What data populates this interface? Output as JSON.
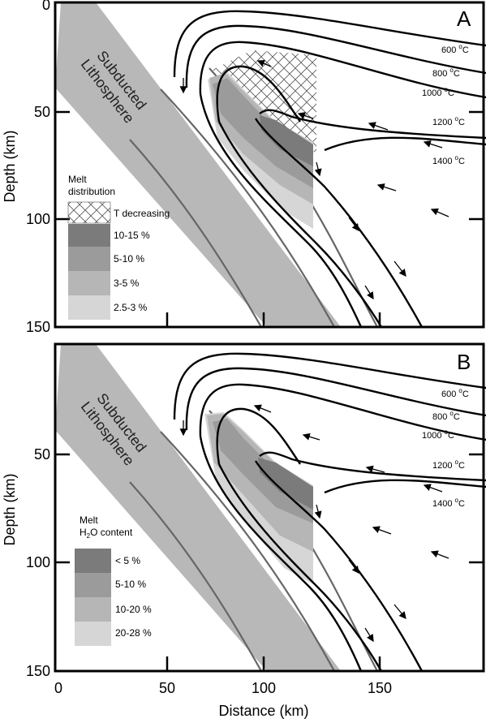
{
  "axes": {
    "xlabel": "Distance (km)",
    "ylabel": "Depth (km)",
    "x_ticks": [
      "0",
      "50",
      "100",
      "150"
    ],
    "y_ticks": [
      "0",
      "50",
      "100",
      "150"
    ]
  },
  "panel_a": {
    "letter": "A",
    "slab_label_1": "Subducted",
    "slab_label_2": "Lithosphere",
    "isotherms": [
      "600",
      "800",
      "1000",
      "1200",
      "1400"
    ],
    "iso_unit": "C",
    "iso_sup": "o",
    "legend_title_1": "Melt",
    "legend_title_2": "distribution",
    "legend": [
      "T decreasing",
      "10-15 %",
      "5-10 %",
      "3-5 %",
      "2.5-3 %"
    ],
    "colors": [
      "#7b7b7b",
      "#9b9b9b",
      "#b6b6b6",
      "#d6d6d6"
    ]
  },
  "panel_b": {
    "letter": "B",
    "slab_label_1": "Subducted",
    "slab_label_2": "Lithosphere",
    "isotherms": [
      "600",
      "800",
      "1000",
      "1200",
      "1400"
    ],
    "iso_unit": "C",
    "iso_sup": "o",
    "legend_title_1": "Melt",
    "legend_title_2a": "H",
    "legend_title_2b": "2",
    "legend_title_2c": "O content",
    "legend": [
      "< 5 %",
      "5-10 %",
      "10-20 %",
      "20-28 %"
    ],
    "colors": [
      "#7b7b7b",
      "#9b9b9b",
      "#b6b6b6",
      "#d6d6d6"
    ]
  }
}
